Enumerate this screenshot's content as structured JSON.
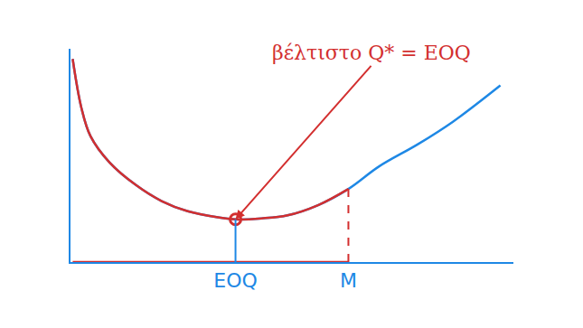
{
  "chart_data": {
    "type": "line",
    "x": [
      0.5,
      2.5,
      4.6,
      9,
      15,
      21,
      27,
      34,
      38,
      44,
      50,
      57,
      64,
      71,
      80,
      88,
      99
    ],
    "series": [
      {
        "color": "#1e88e5",
        "line_style": "solid",
        "values": [
          100,
          76,
          62,
          49,
          38,
          30,
          25,
          22,
          21,
          21.5,
          23,
          28,
          36,
          47,
          58,
          69,
          87
        ]
      },
      {
        "color": "#d32f2f",
        "line_style": "solid",
        "values": [
          100,
          76,
          62,
          49,
          38,
          30,
          25,
          22,
          21,
          21.5,
          23,
          28,
          36,
          null,
          null,
          null,
          null
        ]
      },
      {
        "color": "#d32f2f",
        "line_style": "solid",
        "values": [
          0,
          0,
          0,
          0,
          0,
          0,
          0,
          0,
          0,
          0,
          0,
          0,
          0,
          null,
          null,
          null,
          null
        ]
      },
      {
        "color": "#d32f2f",
        "marker": "circle",
        "values": [
          null,
          null,
          null,
          null,
          null,
          null,
          null,
          null,
          21,
          null,
          null,
          null,
          null,
          null,
          null,
          null,
          null
        ]
      }
    ],
    "xlim": [
      0,
      102
    ],
    "ylim": [
      0,
      105
    ],
    "xticks": [
      {
        "value": 38,
        "label": "EOQ"
      },
      {
        "value": 64,
        "label": "M"
      }
    ],
    "tick_labels": "x",
    "grid": false,
    "annotations": [
      {
        "text": "βέλτιστο Q* = EOQ",
        "x": 38,
        "y": 21
      }
    ]
  }
}
